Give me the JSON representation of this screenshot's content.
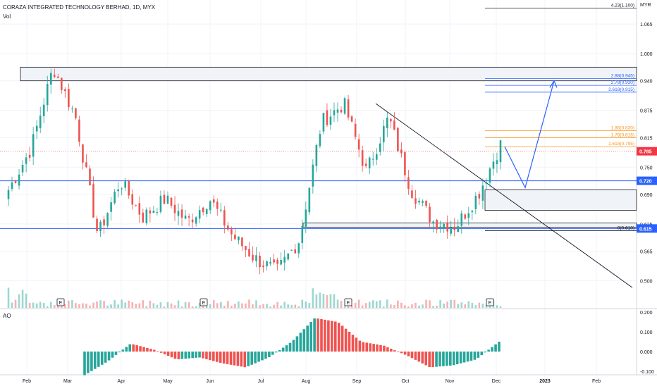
{
  "header": {
    "title": "CORAZA INTEGRATED TECHNOLOGY BERHAD, 1D, MYX",
    "volume_label": "Vol",
    "oscillator_label": "AO"
  },
  "colors": {
    "up": "#26a69a",
    "down": "#ef5350",
    "blue_line": "#2962ff",
    "fib_orange": "#f7931a",
    "fib_blue": "#2962ff",
    "trendline": "#131722",
    "zone_fill": "#f0f3f7",
    "zone_border": "#131722",
    "last_price": "#f23645"
  },
  "chart_data": {
    "type": "candlestick",
    "title": "CORAZA INTEGRATED TECHNOLOGY BERHAD, 1D, MYX",
    "currency": "MYR",
    "price_ticks": [
      "1.065",
      "1.000",
      "0.940",
      "0.875",
      "0.815",
      "0.750",
      "0.690",
      "0.625",
      "0.565",
      "0.500"
    ],
    "x_ticks": [
      "Feb",
      "Mar",
      "Apr",
      "May",
      "Jun",
      "Jul",
      "Aug",
      "Sep",
      "Oct",
      "Nov",
      "Dec",
      "2023",
      "Feb"
    ],
    "ao_ticks": [
      "0.200",
      "0.100",
      "0.000",
      "-0.100"
    ],
    "last_price": "0.785",
    "price_labels": {
      "level_720": "0.720",
      "level_615": "0.615"
    },
    "horizontal_lines": [
      0.72,
      0.615
    ],
    "fib_labels": {
      "top": "4.23(1.100)",
      "f288": "2.88(0.945)",
      "f278": "2.78(0.930)",
      "f2618": "2.618(0.915)",
      "f186": "1.86(0.830)",
      "f178": "1.78(0.815)",
      "f1618": "1.618(0.795)",
      "f0": "0(0.610)"
    },
    "zones": [
      {
        "name": "supply-zone-top",
        "low": 0.94,
        "high": 0.97
      },
      {
        "name": "demand-zone-mid",
        "low": 0.655,
        "high": 0.7
      },
      {
        "name": "demand-zone-low",
        "low": 0.618,
        "high": 0.627
      }
    ],
    "earnings_markers": [
      "E",
      "E",
      "E",
      "E"
    ],
    "anchor_prices": [
      0.7,
      0.79,
      0.97,
      0.86,
      0.6,
      0.72,
      0.64,
      0.68,
      0.63,
      0.68,
      0.6,
      0.55,
      0.52,
      0.59,
      0.85,
      0.89,
      0.74,
      0.86,
      0.7,
      0.63,
      0.62,
      0.69,
      0.8
    ],
    "ao_values": [
      -0.12,
      -0.05,
      0.04,
      0.01,
      -0.04,
      -0.03,
      -0.06,
      -0.08,
      -0.03,
      0.05,
      0.17,
      0.15,
      0.05,
      0.03,
      -0.02,
      -0.08,
      -0.07,
      -0.04,
      0.05
    ],
    "projection": {
      "prices": [
        0.795,
        0.705,
        0.94
      ]
    }
  }
}
